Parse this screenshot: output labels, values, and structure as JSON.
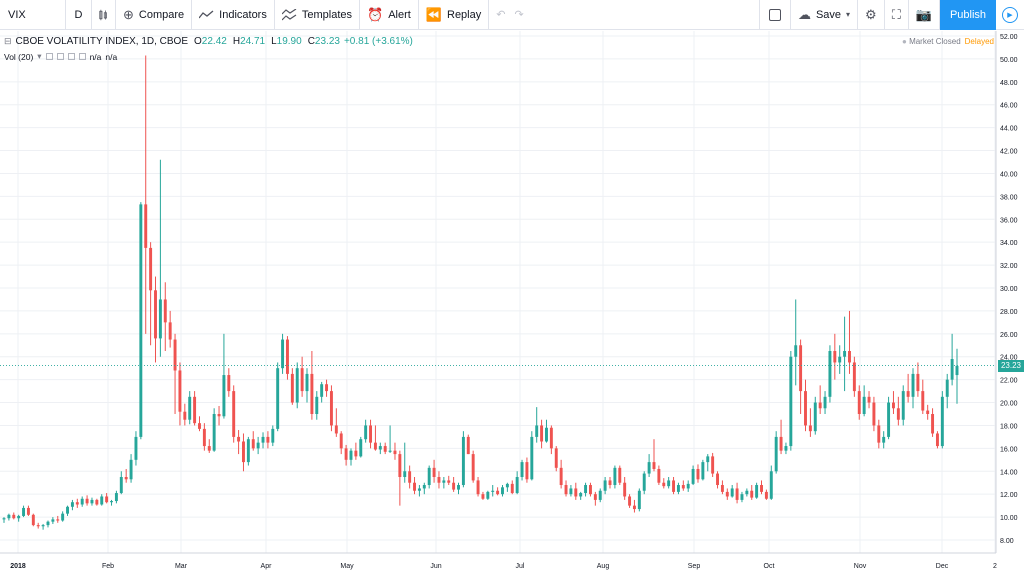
{
  "toolbar": {
    "symbol": "VIX",
    "interval": "D",
    "compare": "Compare",
    "indicators": "Indicators",
    "templates": "Templates",
    "alert": "Alert",
    "replay": "Replay",
    "save": "Save",
    "publish": "Publish"
  },
  "legend": {
    "title": "CBOE VOLATILITY INDEX, 1D, CBOE",
    "open_label": "O",
    "open": "22.42",
    "high_label": "H",
    "high": "24.71",
    "low_label": "L",
    "low": "19.90",
    "close_label": "C",
    "close": "23.23",
    "change": "+0.81 (+3.61%)"
  },
  "volume": {
    "label": "Vol (20)",
    "v1": "n/a",
    "v2": "n/a"
  },
  "status": {
    "market": "Market Closed",
    "delayed": "Delayed"
  },
  "colors": {
    "up": "#26a69a",
    "down": "#ef5350",
    "accent": "#2196f3",
    "delayed": "#ff9800"
  },
  "icons": [
    "bars-icon",
    "compare-icon",
    "indicators-icon",
    "templates-icon",
    "alert-icon",
    "replay-icon",
    "undo-icon",
    "redo-icon",
    "save-cloud-icon",
    "settings-icon",
    "fullscreen-icon",
    "camera-icon",
    "play-icon"
  ],
  "chart_data": {
    "type": "candlestick",
    "current_price": "23.23",
    "y_ticks": [
      "52.00",
      "50.00",
      "48.00",
      "46.00",
      "44.00",
      "42.00",
      "40.00",
      "38.00",
      "36.00",
      "34.00",
      "32.00",
      "30.00",
      "28.00",
      "26.00",
      "24.00",
      "22.00",
      "20.00",
      "18.00",
      "16.00",
      "14.00",
      "12.00",
      "10.00",
      "8.00"
    ],
    "x_ticks": [
      "2018",
      "Feb",
      "Mar",
      "Apr",
      "May",
      "Jun",
      "Jul",
      "Aug",
      "Sep",
      "Oct",
      "Nov",
      "Dec",
      "2"
    ],
    "ylim": [
      6.5,
      52.5
    ],
    "grid": true,
    "candles": [
      [
        9.8,
        10.0,
        9.5,
        9.9
      ],
      [
        9.9,
        10.3,
        9.7,
        10.2
      ],
      [
        10.2,
        10.4,
        9.8,
        9.9
      ],
      [
        9.9,
        10.2,
        9.6,
        10.1
      ],
      [
        10.1,
        11.0,
        10.0,
        10.8
      ],
      [
        10.8,
        11.0,
        10.1,
        10.2
      ],
      [
        10.2,
        10.3,
        9.2,
        9.3
      ],
      [
        9.3,
        9.5,
        9.0,
        9.2
      ],
      [
        9.2,
        9.4,
        8.9,
        9.3
      ],
      [
        9.3,
        9.7,
        9.1,
        9.6
      ],
      [
        9.6,
        10.0,
        9.4,
        9.8
      ],
      [
        9.8,
        10.1,
        9.5,
        9.7
      ],
      [
        9.7,
        10.5,
        9.6,
        10.3
      ],
      [
        10.3,
        11.0,
        10.1,
        10.9
      ],
      [
        10.9,
        11.5,
        10.6,
        11.3
      ],
      [
        11.3,
        11.6,
        10.8,
        11.1
      ],
      [
        11.1,
        11.8,
        10.9,
        11.6
      ],
      [
        11.6,
        11.9,
        11.0,
        11.2
      ],
      [
        11.2,
        11.7,
        11.0,
        11.5
      ],
      [
        11.5,
        11.6,
        11.0,
        11.1
      ],
      [
        11.1,
        12.0,
        11.0,
        11.8
      ],
      [
        11.8,
        12.1,
        11.2,
        11.3
      ],
      [
        11.3,
        11.5,
        11.0,
        11.4
      ],
      [
        11.4,
        12.3,
        11.2,
        12.1
      ],
      [
        12.1,
        14.0,
        12.0,
        13.5
      ],
      [
        13.5,
        14.2,
        13.0,
        13.3
      ],
      [
        13.3,
        15.5,
        13.0,
        15.0
      ],
      [
        15.0,
        17.5,
        14.5,
        17.0
      ],
      [
        17.0,
        37.5,
        16.8,
        37.3
      ],
      [
        37.3,
        50.3,
        26.0,
        33.5
      ],
      [
        33.5,
        34.0,
        25.0,
        29.8
      ],
      [
        29.8,
        31.0,
        23.5,
        25.6
      ],
      [
        25.6,
        41.2,
        24.0,
        29.0
      ],
      [
        29.0,
        30.5,
        24.5,
        27.0
      ],
      [
        27.0,
        28.0,
        24.8,
        25.5
      ],
      [
        25.5,
        26.0,
        19.0,
        22.8
      ],
      [
        22.8,
        23.5,
        18.0,
        19.2
      ],
      [
        19.2,
        19.9,
        18.0,
        18.5
      ],
      [
        18.5,
        21.0,
        18.1,
        20.5
      ],
      [
        20.5,
        21.0,
        18.0,
        18.2
      ],
      [
        18.2,
        18.8,
        17.5,
        17.7
      ],
      [
        17.7,
        18.2,
        15.8,
        16.2
      ],
      [
        16.2,
        16.8,
        15.6,
        15.8
      ],
      [
        15.8,
        19.5,
        15.7,
        19.0
      ],
      [
        19.0,
        19.7,
        18.0,
        18.8
      ],
      [
        18.8,
        26.0,
        18.6,
        22.4
      ],
      [
        22.4,
        23.0,
        20.5,
        21.0
      ],
      [
        21.0,
        21.5,
        16.5,
        17.0
      ],
      [
        17.0,
        17.6,
        15.5,
        16.6
      ],
      [
        16.6,
        17.3,
        14.0,
        14.8
      ],
      [
        14.8,
        17.0,
        14.5,
        16.8
      ],
      [
        16.8,
        17.5,
        15.8,
        16.0
      ],
      [
        16.0,
        17.0,
        15.5,
        16.5
      ],
      [
        16.5,
        17.4,
        16.0,
        17.0
      ],
      [
        17.0,
        17.5,
        16.0,
        16.5
      ],
      [
        16.5,
        18.0,
        16.2,
        17.7
      ],
      [
        17.7,
        23.5,
        17.5,
        23.0
      ],
      [
        23.0,
        26.0,
        22.5,
        25.5
      ],
      [
        25.5,
        25.8,
        22.0,
        22.5
      ],
      [
        22.5,
        23.0,
        19.8,
        20.0
      ],
      [
        20.0,
        23.5,
        19.5,
        23.0
      ],
      [
        23.0,
        24.0,
        20.5,
        21.0
      ],
      [
        21.0,
        23.0,
        20.0,
        22.5
      ],
      [
        22.5,
        24.5,
        18.5,
        19.0
      ],
      [
        19.0,
        21.0,
        18.5,
        20.5
      ],
      [
        20.5,
        21.8,
        20.0,
        21.6
      ],
      [
        21.6,
        22.0,
        20.5,
        21.0
      ],
      [
        21.0,
        21.5,
        17.5,
        18.0
      ],
      [
        18.0,
        19.5,
        17.0,
        17.3
      ],
      [
        17.3,
        17.5,
        15.5,
        16.0
      ],
      [
        16.0,
        16.3,
        14.5,
        15.0
      ],
      [
        15.0,
        16.0,
        14.5,
        15.8
      ],
      [
        15.8,
        16.5,
        15.0,
        15.3
      ],
      [
        15.3,
        17.0,
        15.2,
        16.8
      ],
      [
        16.8,
        18.5,
        16.5,
        18.0
      ],
      [
        18.0,
        18.5,
        16.0,
        16.5
      ],
      [
        16.5,
        18.0,
        15.8,
        15.9
      ],
      [
        15.9,
        16.5,
        15.5,
        16.2
      ],
      [
        16.2,
        16.5,
        15.5,
        15.7
      ],
      [
        15.7,
        18.0,
        15.6,
        15.8
      ],
      [
        15.8,
        16.5,
        15.0,
        15.5
      ],
      [
        15.5,
        15.8,
        11.0,
        13.5
      ],
      [
        13.5,
        16.5,
        13.0,
        14.0
      ],
      [
        14.0,
        14.5,
        12.5,
        13.0
      ],
      [
        13.0,
        13.5,
        12.0,
        12.3
      ],
      [
        12.3,
        12.8,
        11.8,
        12.5
      ],
      [
        12.5,
        13.0,
        12.0,
        12.8
      ],
      [
        12.8,
        14.5,
        12.5,
        14.3
      ],
      [
        14.3,
        15.0,
        13.0,
        13.5
      ],
      [
        13.5,
        14.0,
        12.5,
        13.0
      ],
      [
        13.0,
        13.5,
        12.5,
        13.2
      ],
      [
        13.2,
        13.6,
        12.8,
        13.0
      ],
      [
        13.0,
        13.5,
        12.2,
        12.4
      ],
      [
        12.4,
        13.0,
        12.0,
        12.8
      ],
      [
        12.8,
        17.5,
        12.6,
        17.0
      ],
      [
        17.0,
        17.2,
        15.5,
        15.5
      ],
      [
        15.5,
        15.8,
        13.0,
        13.2
      ],
      [
        13.2,
        13.5,
        11.8,
        12.0
      ],
      [
        12.0,
        12.2,
        11.5,
        11.6
      ],
      [
        11.6,
        12.3,
        11.5,
        12.2
      ],
      [
        12.2,
        12.8,
        11.8,
        12.3
      ],
      [
        12.3,
        12.6,
        11.9,
        12.0
      ],
      [
        12.0,
        12.8,
        11.8,
        12.6
      ],
      [
        12.6,
        13.0,
        12.2,
        12.9
      ],
      [
        12.9,
        13.2,
        12.0,
        12.1
      ],
      [
        12.1,
        14.0,
        12.0,
        13.5
      ],
      [
        13.5,
        15.0,
        13.2,
        14.8
      ],
      [
        14.8,
        15.2,
        13.0,
        13.3
      ],
      [
        13.3,
        17.5,
        13.2,
        17.0
      ],
      [
        17.0,
        19.6,
        16.5,
        18.0
      ],
      [
        18.0,
        18.5,
        16.0,
        16.6
      ],
      [
        16.6,
        18.5,
        16.5,
        17.8
      ],
      [
        17.8,
        18.0,
        15.5,
        16.0
      ],
      [
        16.0,
        16.2,
        14.0,
        14.3
      ],
      [
        14.3,
        15.0,
        12.5,
        12.8
      ],
      [
        12.8,
        13.2,
        11.8,
        12.0
      ],
      [
        12.0,
        12.8,
        11.8,
        12.5
      ],
      [
        12.5,
        13.0,
        11.5,
        11.8
      ],
      [
        11.8,
        12.2,
        11.5,
        12.1
      ],
      [
        12.1,
        13.0,
        11.8,
        12.8
      ],
      [
        12.8,
        13.0,
        11.8,
        12.0
      ],
      [
        12.0,
        12.2,
        11.0,
        11.5
      ],
      [
        11.5,
        12.5,
        11.3,
        12.3
      ],
      [
        12.3,
        13.5,
        12.0,
        13.2
      ],
      [
        13.2,
        13.5,
        12.5,
        12.8
      ],
      [
        12.8,
        14.5,
        12.5,
        14.3
      ],
      [
        14.3,
        14.5,
        12.8,
        13.0
      ],
      [
        13.0,
        13.5,
        11.5,
        11.8
      ],
      [
        11.8,
        12.0,
        10.8,
        11.0
      ],
      [
        11.0,
        11.5,
        10.4,
        10.7
      ],
      [
        10.7,
        12.5,
        10.5,
        12.3
      ],
      [
        12.3,
        14.0,
        12.0,
        13.8
      ],
      [
        13.8,
        15.5,
        13.5,
        14.8
      ],
      [
        14.8,
        16.8,
        14.0,
        14.2
      ],
      [
        14.2,
        14.5,
        12.8,
        13.0
      ],
      [
        13.0,
        13.4,
        12.5,
        12.7
      ],
      [
        12.7,
        13.5,
        12.5,
        13.2
      ],
      [
        13.2,
        13.5,
        12.0,
        12.2
      ],
      [
        12.2,
        13.0,
        12.0,
        12.8
      ],
      [
        12.8,
        13.2,
        12.3,
        12.5
      ],
      [
        12.5,
        13.2,
        12.2,
        12.9
      ],
      [
        12.9,
        14.5,
        12.8,
        14.2
      ],
      [
        14.2,
        14.6,
        13.0,
        13.3
      ],
      [
        13.3,
        15.0,
        13.2,
        14.8
      ],
      [
        14.8,
        15.5,
        14.0,
        15.3
      ],
      [
        15.3,
        15.6,
        13.5,
        13.8
      ],
      [
        13.8,
        14.0,
        12.5,
        12.8
      ],
      [
        12.8,
        13.2,
        12.0,
        12.2
      ],
      [
        12.2,
        12.5,
        11.5,
        11.8
      ],
      [
        11.8,
        12.8,
        11.7,
        12.5
      ],
      [
        12.5,
        13.0,
        11.2,
        11.5
      ],
      [
        11.5,
        12.2,
        11.3,
        12.0
      ],
      [
        12.0,
        12.5,
        11.8,
        12.3
      ],
      [
        12.3,
        12.8,
        11.5,
        11.7
      ],
      [
        11.7,
        13.0,
        11.6,
        12.8
      ],
      [
        12.8,
        13.2,
        12.0,
        12.2
      ],
      [
        12.2,
        12.4,
        11.5,
        11.6
      ],
      [
        11.6,
        14.5,
        11.5,
        14.0
      ],
      [
        14.0,
        17.5,
        13.8,
        17.0
      ],
      [
        17.0,
        18.5,
        15.5,
        15.8
      ],
      [
        15.8,
        16.5,
        15.5,
        16.2
      ],
      [
        16.2,
        24.5,
        15.8,
        24.0
      ],
      [
        24.0,
        29.0,
        21.5,
        25.0
      ],
      [
        25.0,
        25.5,
        19.0,
        21.0
      ],
      [
        21.0,
        22.0,
        17.5,
        18.0
      ],
      [
        18.0,
        19.5,
        17.0,
        17.5
      ],
      [
        17.5,
        20.5,
        17.2,
        20.0
      ],
      [
        20.0,
        21.5,
        19.0,
        19.5
      ],
      [
        19.5,
        21.0,
        19.0,
        20.5
      ],
      [
        20.5,
        25.0,
        20.0,
        24.5
      ],
      [
        24.5,
        26.0,
        22.0,
        23.5
      ],
      [
        23.5,
        25.0,
        22.5,
        24.0
      ],
      [
        24.0,
        27.5,
        21.0,
        24.5
      ],
      [
        24.5,
        28.0,
        22.5,
        23.5
      ],
      [
        23.5,
        24.0,
        20.5,
        21.0
      ],
      [
        21.0,
        21.5,
        18.5,
        19.0
      ],
      [
        19.0,
        21.5,
        18.8,
        20.5
      ],
      [
        20.5,
        21.0,
        19.5,
        20.0
      ],
      [
        20.0,
        20.5,
        17.5,
        18.0
      ],
      [
        18.0,
        18.5,
        16.0,
        16.5
      ],
      [
        16.5,
        17.5,
        16.0,
        17.0
      ],
      [
        17.0,
        20.5,
        16.8,
        20.0
      ],
      [
        20.0,
        21.0,
        19.0,
        19.5
      ],
      [
        19.5,
        20.5,
        18.0,
        18.5
      ],
      [
        18.5,
        21.5,
        18.0,
        21.0
      ],
      [
        21.0,
        22.5,
        20.0,
        20.5
      ],
      [
        20.5,
        23.0,
        19.5,
        22.5
      ],
      [
        22.5,
        23.5,
        20.5,
        21.0
      ],
      [
        21.0,
        22.0,
        19.0,
        19.3
      ],
      [
        19.3,
        19.8,
        18.5,
        19.0
      ],
      [
        19.0,
        19.5,
        17.0,
        17.3
      ],
      [
        17.3,
        17.5,
        16.0,
        16.2
      ],
      [
        16.2,
        21.0,
        16.0,
        20.5
      ],
      [
        20.5,
        22.5,
        19.5,
        22.0
      ],
      [
        22.0,
        26.0,
        21.5,
        23.8
      ],
      [
        22.4,
        24.7,
        19.9,
        23.2
      ]
    ]
  }
}
